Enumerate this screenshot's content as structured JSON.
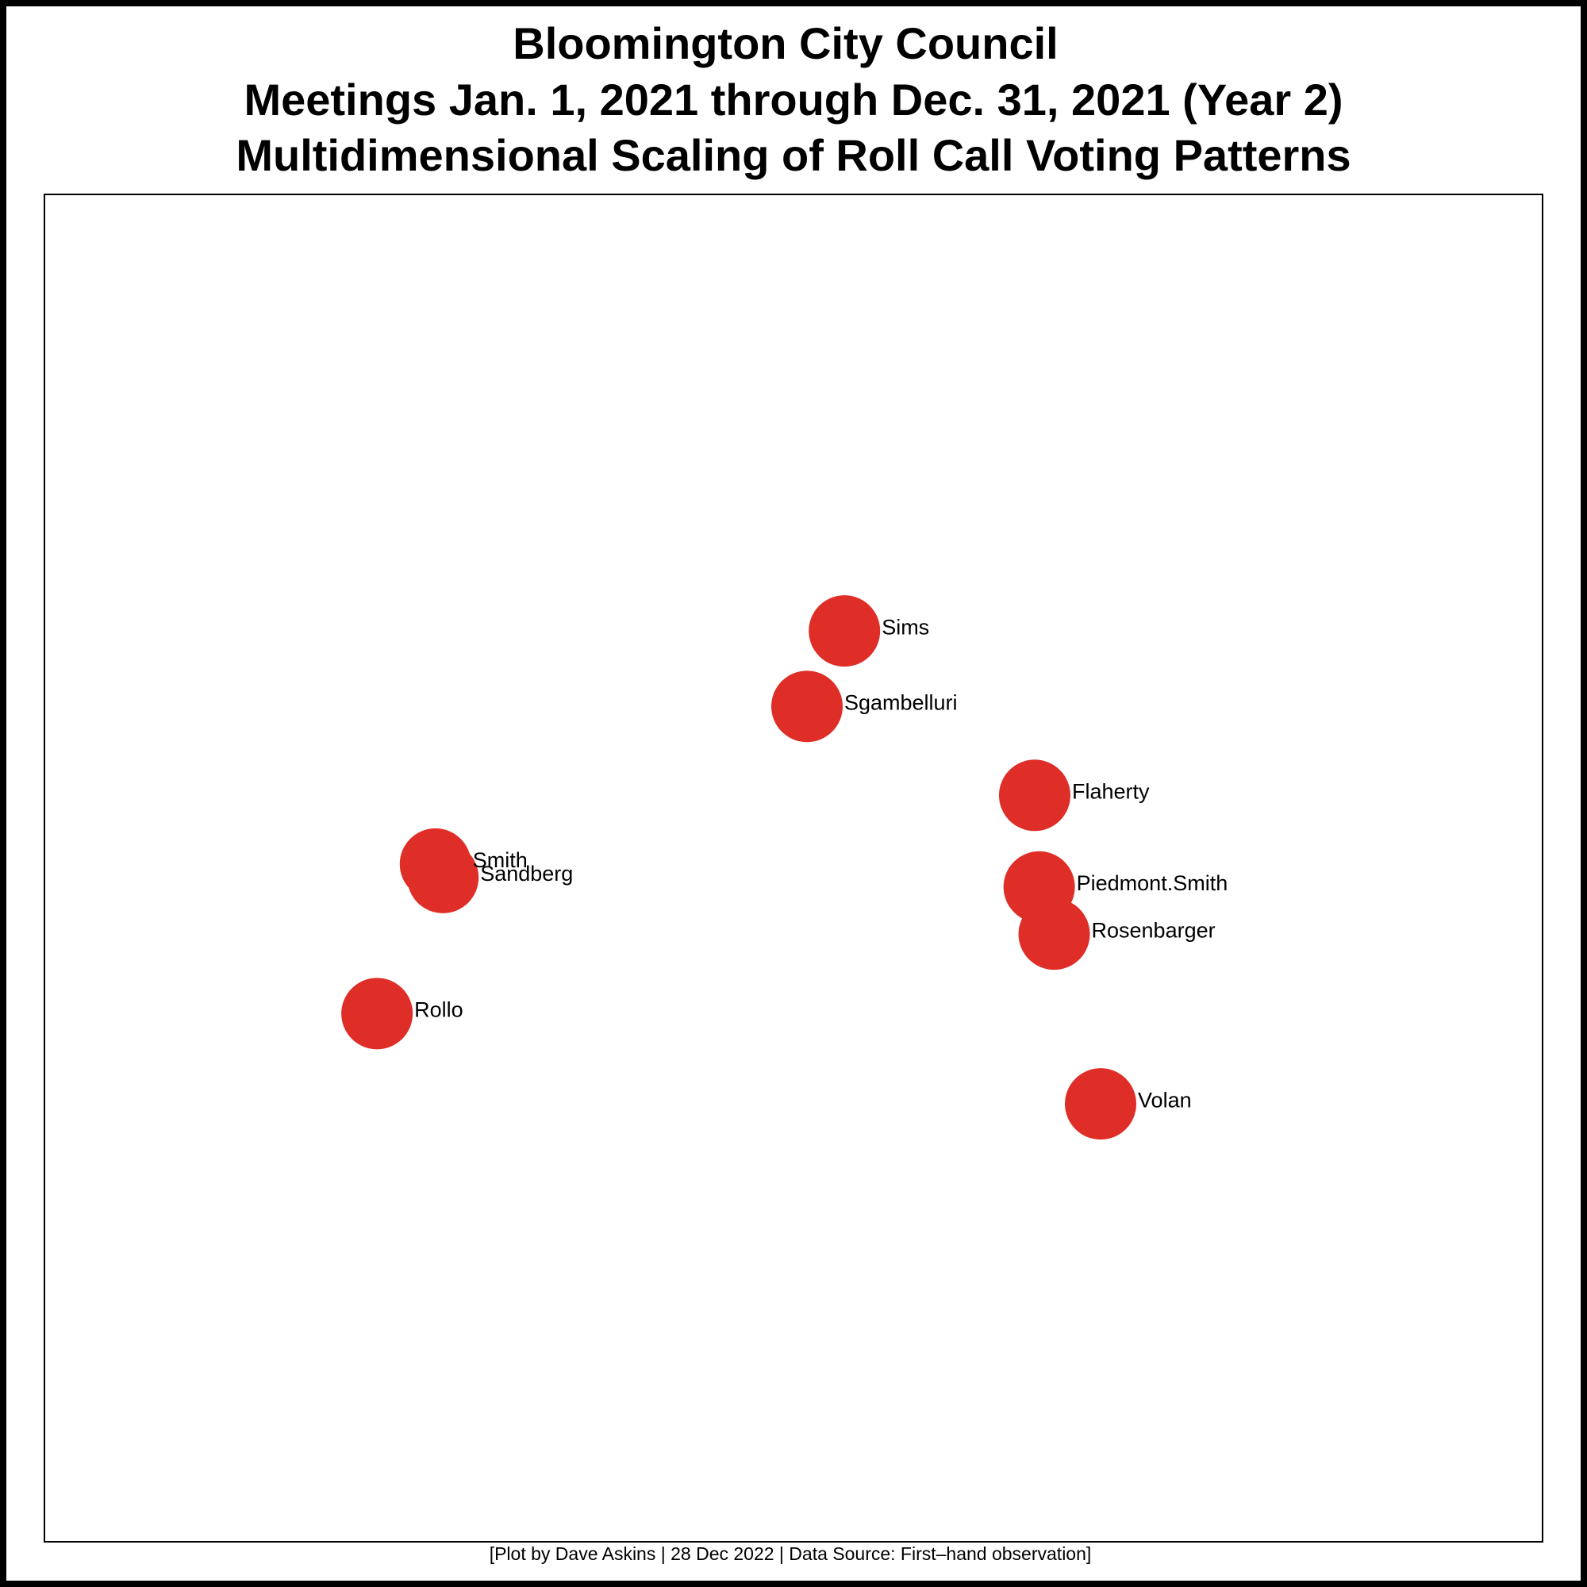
{
  "chart_data": {
    "type": "scatter",
    "title": [
      "Bloomington City Council",
      "Meetings Jan. 1, 2021 through Dec. 31, 2021 (Year 2)",
      "Multidimensional Scaling of Roll Call Voting Patterns"
    ],
    "caption": "[Plot by Dave Askins | 28 Dec 2022 | Data Source: First–hand observation]",
    "labels": [
      "Sims",
      "Sgambelluri",
      "Flaherty",
      "Smith",
      "Sandberg",
      "Piedmont.Smith",
      "Rosenbarger",
      "Rollo",
      "Volan"
    ],
    "x": [
      53.4,
      50.9,
      66.1,
      26.1,
      26.6,
      66.4,
      67.4,
      22.2,
      70.5
    ],
    "values": [
      67.6,
      62.0,
      55.4,
      50.3,
      49.3,
      48.6,
      45.1,
      39.2,
      32.5
    ],
    "color": "#de2e27",
    "xlim": [
      0,
      100
    ],
    "ylim": [
      0,
      100
    ]
  }
}
